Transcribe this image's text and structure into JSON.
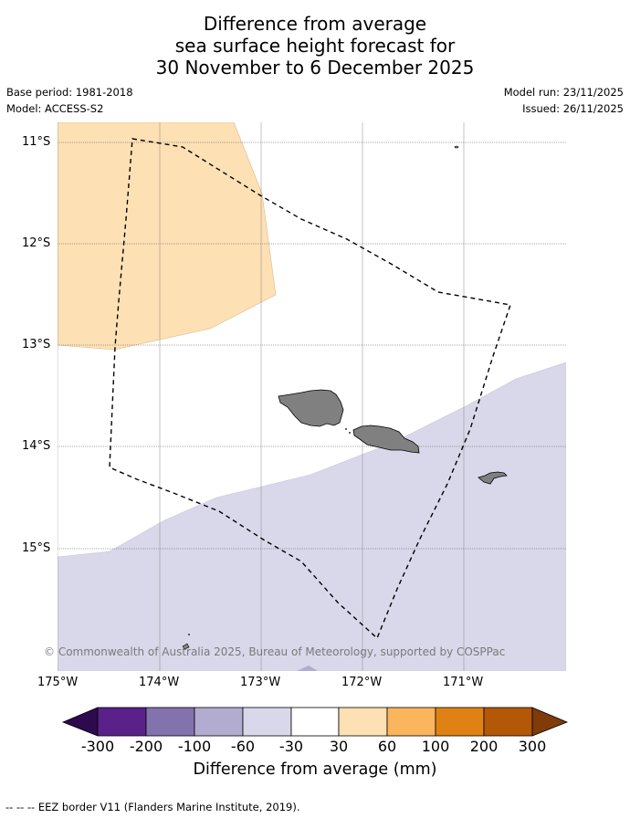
{
  "title": {
    "line1": "Difference from average",
    "line2": "sea surface height forecast for",
    "line3": "30 November to 6 December 2025"
  },
  "info": {
    "base_period": "Base period: 1981-2018",
    "model": "Model: ACCESS-S2",
    "model_run": "Model run: 23/11/2025",
    "issued": "Issued: 26/11/2025"
  },
  "map": {
    "lat_labels": [
      "11°S",
      "12°S",
      "13°S",
      "14°S",
      "15°S"
    ],
    "lon_labels": [
      "175°W",
      "174°W",
      "173°W",
      "172°W",
      "171°W"
    ],
    "copyright": "© Commonwealth of Australia 2025, Bureau of Meteorology, supported by COSPPac",
    "colors": {
      "positive_30_60": "#fde0b4",
      "negative_30_60": "#d8d8ea",
      "land": "#808080",
      "eez_line": "#000000"
    }
  },
  "colorbar": {
    "ticks": [
      "-300",
      "-200",
      "-100",
      "-60",
      "-30",
      "30",
      "60",
      "100",
      "200",
      "300"
    ],
    "colors": [
      "#2d0a4e",
      "#5a2189",
      "#8373ad",
      "#b2acd1",
      "#d8d8ea",
      "#ffffff",
      "#fde0b4",
      "#fbb55c",
      "#e08213",
      "#b35807",
      "#7f3b08"
    ],
    "label": "Difference from average (mm)"
  },
  "footnote": "--  --  -- EEZ border V11 (Flanders Marine Institute, 2019)."
}
